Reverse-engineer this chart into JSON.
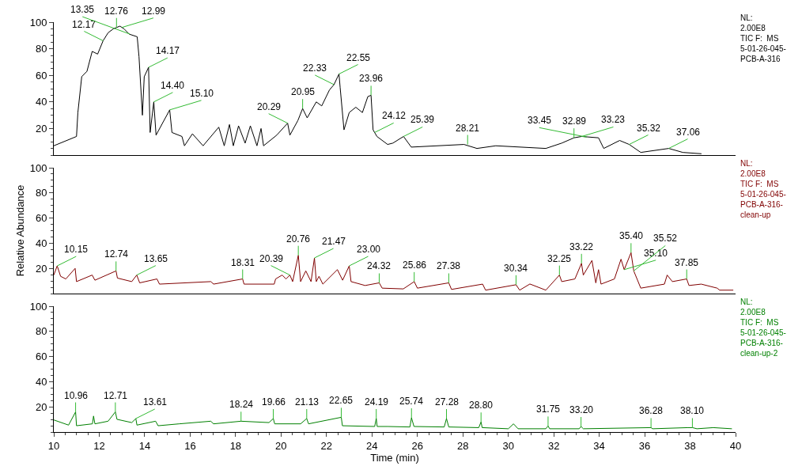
{
  "chart_data": [
    {
      "type": "line",
      "xlim": [
        10,
        40
      ],
      "xticks": [
        10,
        12,
        14,
        16,
        18,
        20,
        22,
        24,
        26,
        28,
        30,
        32,
        34,
        36,
        38,
        40
      ],
      "ylim": [
        0,
        100
      ],
      "yticks": [
        20,
        40,
        60,
        80,
        100
      ],
      "tick_labels": "y",
      "x": [
        10.0,
        11.0,
        11.06,
        11.23,
        11.46,
        11.69,
        11.93,
        12.17,
        12.39,
        12.62,
        12.91,
        13.09,
        13.32,
        13.67,
        13.75,
        13.9,
        13.98,
        14.17,
        14.24,
        14.4,
        14.5,
        15.1,
        15.2,
        15.64,
        15.75,
        16.1,
        16.57,
        17.26,
        17.5,
        17.73,
        17.9,
        18.13,
        18.42,
        18.65,
        18.94,
        19.12,
        19.23,
        19.81,
        20.29,
        20.39,
        20.74,
        20.95,
        21.15,
        21.55,
        21.79,
        22.13,
        22.33,
        22.55,
        22.6,
        22.77,
        23.0,
        23.29,
        23.58,
        23.82,
        23.96,
        24.05,
        24.22,
        24.69,
        24.92,
        25.39,
        25.73,
        28.05,
        28.62,
        29.45,
        31.65,
        32.35,
        32.89,
        33.23,
        33.97,
        34.2,
        34.9,
        35.32,
        35.83,
        37.06,
        37.68,
        38.5
      ],
      "series": [
        {
          "color": "#000000",
          "values": [
            7,
            14,
            32,
            59,
            63,
            78,
            76,
            86,
            92,
            95,
            97,
            95,
            91,
            89,
            74,
            30,
            59,
            66,
            17,
            40,
            15,
            34,
            17,
            14,
            7,
            16,
            7,
            21,
            7,
            23,
            7,
            22,
            9,
            22,
            7,
            20,
            7,
            15,
            24,
            15,
            26,
            35,
            28,
            40,
            37,
            49,
            53,
            61,
            51,
            19,
            32,
            36,
            32,
            44,
            45,
            19,
            14,
            8,
            9,
            14,
            6,
            8,
            5,
            7,
            5,
            9,
            13,
            14,
            13,
            5,
            11,
            8,
            2,
            5,
            2,
            1
          ]
        }
      ],
      "annotations": [
        "NL:\n2.00E8\nTIC F:  MS\n5-01-26-045-\nPCB-A-316",
        {
          "text": "12.17",
          "x": 12.17,
          "y": 86
        },
        {
          "text": "12.76",
          "x": 12.76,
          "y": 96
        },
        {
          "text": "12.99",
          "x": 12.99,
          "y": 96
        },
        {
          "text": "13.35",
          "x": 13.35,
          "y": 91
        },
        {
          "text": "14.17",
          "x": 14.17,
          "y": 66
        },
        {
          "text": "14.40",
          "x": 14.4,
          "y": 40
        },
        {
          "text": "15.10",
          "x": 15.1,
          "y": 34
        },
        {
          "text": "20.29",
          "x": 20.29,
          "y": 24
        },
        {
          "text": "20.95",
          "x": 20.95,
          "y": 35
        },
        {
          "text": "22.33",
          "x": 22.33,
          "y": 53
        },
        {
          "text": "22.55",
          "x": 22.55,
          "y": 61
        },
        {
          "text": "23.96",
          "x": 23.96,
          "y": 45
        },
        {
          "text": "24.12",
          "x": 24.12,
          "y": 17
        },
        {
          "text": "25.39",
          "x": 25.39,
          "y": 14
        },
        {
          "text": "28.21",
          "x": 28.21,
          "y": 8
        },
        {
          "text": "32.89",
          "x": 32.89,
          "y": 13
        },
        {
          "text": "33.23",
          "x": 33.23,
          "y": 14
        },
        {
          "text": "33.45",
          "x": 33.45,
          "y": 13.5
        },
        {
          "text": "35.32",
          "x": 35.32,
          "y": 8
        },
        {
          "text": "37.06",
          "x": 37.06,
          "y": 5
        }
      ]
    },
    {
      "type": "line",
      "xlim": [
        10,
        40
      ],
      "xticks": [
        10,
        12,
        14,
        16,
        18,
        20,
        22,
        24,
        26,
        28,
        30,
        32,
        34,
        36,
        38,
        40
      ],
      "ylim": [
        0,
        100
      ],
      "yticks": [
        20,
        40,
        60,
        80,
        100
      ],
      "tick_labels": "y",
      "ylabel": "Relative Abundance",
      "x": [
        10.0,
        10.15,
        10.3,
        10.53,
        10.94,
        11.0,
        11.69,
        11.81,
        12.74,
        12.8,
        13.43,
        13.65,
        13.78,
        14.54,
        14.65,
        16.91,
        17.03,
        18.31,
        18.37,
        19.7,
        19.76,
        20.05,
        20.22,
        20.39,
        20.51,
        20.76,
        20.86,
        21.09,
        21.32,
        21.47,
        21.55,
        21.67,
        21.84,
        22.48,
        22.71,
        23.0,
        23.08,
        23.7,
        24.32,
        24.45,
        25.38,
        25.86,
        26.0,
        27.38,
        27.5,
        28.87,
        29.0,
        30.34,
        30.5,
        30.95,
        31.65,
        32.25,
        32.35,
        32.93,
        33.22,
        33.3,
        33.68,
        33.85,
        33.97,
        34.08,
        34.67,
        34.96,
        35.1,
        35.4,
        35.52,
        35.83,
        36.87,
        36.99,
        37.22,
        37.85,
        37.95,
        38.49,
        39.19,
        39.3,
        39.9
      ],
      "series": [
        {
          "color": "#800000",
          "values": [
            14.7,
            22,
            13.7,
            11.6,
            20,
            9.5,
            14.7,
            10.6,
            18,
            12.3,
            9.5,
            14.7,
            8.5,
            11.6,
            7.5,
            9.5,
            7.5,
            11.6,
            7.5,
            7.5,
            11.6,
            14.7,
            11.6,
            14.7,
            9.5,
            30.4,
            9.5,
            18,
            9.5,
            28.3,
            9.5,
            13.7,
            7.5,
            19,
            10.6,
            22,
            9.5,
            6.4,
            8.5,
            4.3,
            3.7,
            9.5,
            4.3,
            8.5,
            3.3,
            7.5,
            2.7,
            7,
            2.7,
            7.6,
            2.7,
            14.7,
            9.5,
            11.6,
            24,
            14.7,
            26.3,
            8.5,
            19,
            7.5,
            11.6,
            27.3,
            19,
            32.5,
            18,
            4.3,
            7.5,
            14.7,
            9.5,
            11.6,
            6.4,
            7.5,
            4.3,
            2.7,
            2.7
          ]
        }
      ],
      "annotations": [
        "NL:\n2.00E8\nTIC F:  MS\n5-01-26-045-\nPCB-A-316-\nclean-up",
        {
          "text": "10.15",
          "x": 10.15,
          "y": 22
        },
        {
          "text": "12.74",
          "x": 12.74,
          "y": 18
        },
        {
          "text": "13.65",
          "x": 13.65,
          "y": 14.7
        },
        {
          "text": "18.31",
          "x": 18.31,
          "y": 11.6
        },
        {
          "text": "20.39",
          "x": 20.39,
          "y": 14.7
        },
        {
          "text": "20.76",
          "x": 20.76,
          "y": 30.4
        },
        {
          "text": "21.47",
          "x": 21.47,
          "y": 28.3
        },
        {
          "text": "23.00",
          "x": 23.0,
          "y": 22
        },
        {
          "text": "24.32",
          "x": 24.32,
          "y": 8.5
        },
        {
          "text": "25.86",
          "x": 25.86,
          "y": 9.5
        },
        {
          "text": "27.38",
          "x": 27.38,
          "y": 8.5
        },
        {
          "text": "30.34",
          "x": 30.34,
          "y": 7
        },
        {
          "text": "32.25",
          "x": 32.25,
          "y": 14.7
        },
        {
          "text": "33.22",
          "x": 33.22,
          "y": 24
        },
        {
          "text": "35.10",
          "x": 35.1,
          "y": 19
        },
        {
          "text": "35.40",
          "x": 35.4,
          "y": 32.5
        },
        {
          "text": "35.52",
          "x": 35.52,
          "y": 18
        },
        {
          "text": "37.85",
          "x": 37.85,
          "y": 11.6
        }
      ]
    },
    {
      "type": "line",
      "xlim": [
        10,
        40
      ],
      "xticks": [
        10,
        12,
        14,
        16,
        18,
        20,
        22,
        24,
        26,
        28,
        30,
        32,
        34,
        36,
        38,
        40
      ],
      "ylim": [
        0,
        100
      ],
      "yticks": [
        20,
        40,
        60,
        80,
        100
      ],
      "xlabel": "Time (min)",
      "x": [
        10.0,
        10.65,
        10.96,
        11.0,
        11.7,
        11.75,
        11.81,
        12.39,
        12.71,
        12.78,
        13.43,
        13.61,
        13.66,
        14.48,
        14.59,
        15.52,
        16.91,
        17.03,
        18.24,
        19.47,
        19.66,
        19.72,
        20.86,
        21.13,
        21.21,
        22.65,
        22.7,
        24.12,
        24.19,
        24.23,
        24.69,
        25.67,
        25.74,
        25.85,
        27.18,
        27.28,
        27.38,
        28.7,
        28.8,
        28.85,
        30.0,
        30.23,
        30.43,
        31.65,
        31.75,
        31.82,
        33.12,
        33.2,
        33.3,
        36.28,
        36.35,
        37.91,
        38.1,
        38.3,
        39.02,
        39.84
      ],
      "series": [
        {
          "color": "#008000",
          "values": [
            9.6,
            5.5,
            16,
            5,
            6.5,
            12.7,
            6.5,
            8.6,
            16,
            10.1,
            7.5,
            10.7,
            5.5,
            8.6,
            5,
            6.5,
            8.6,
            6.5,
            8.6,
            7.5,
            10.7,
            6.5,
            6.5,
            10.7,
            6.5,
            11.7,
            5,
            4.4,
            10.7,
            4.4,
            4.4,
            4,
            11.3,
            4.4,
            4,
            10.7,
            4,
            3.5,
            8,
            3.5,
            2.6,
            6.5,
            2.6,
            2.6,
            4.8,
            2.6,
            2.6,
            4.4,
            2.6,
            3.5,
            2.6,
            3.5,
            3.5,
            2.6,
            3.5,
            2.6
          ]
        }
      ],
      "annotations": [
        "NL:\n2.00E8\nTIC F:  MS\n5-01-26-045-\nPCB-A-316-\nclean-up-2",
        {
          "text": "10.96",
          "x": 10.96,
          "y": 16
        },
        {
          "text": "12.71",
          "x": 12.71,
          "y": 16
        },
        {
          "text": "13.61",
          "x": 13.61,
          "y": 10.7
        },
        {
          "text": "18.24",
          "x": 18.24,
          "y": 8.6
        },
        {
          "text": "19.66",
          "x": 19.66,
          "y": 10.7
        },
        {
          "text": "21.13",
          "x": 21.13,
          "y": 10.7
        },
        {
          "text": "22.65",
          "x": 22.65,
          "y": 11.7
        },
        {
          "text": "24.19",
          "x": 24.19,
          "y": 10.7
        },
        {
          "text": "25.74",
          "x": 25.74,
          "y": 11.3
        },
        {
          "text": "27.28",
          "x": 27.28,
          "y": 10.7
        },
        {
          "text": "28.80",
          "x": 28.8,
          "y": 8
        },
        {
          "text": "31.75",
          "x": 31.75,
          "y": 4.8
        },
        {
          "text": "33.20",
          "x": 33.2,
          "y": 4.4
        },
        {
          "text": "36.28",
          "x": 36.28,
          "y": 3.5
        },
        {
          "text": "38.10",
          "x": 38.1,
          "y": 3.5
        }
      ]
    }
  ]
}
